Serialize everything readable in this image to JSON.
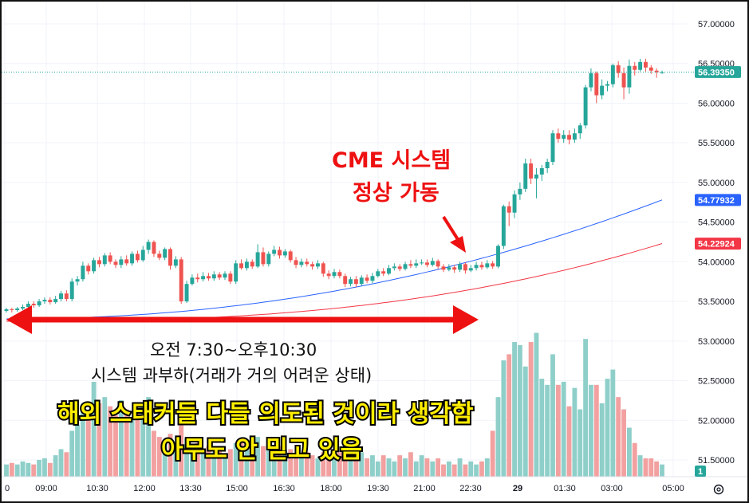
{
  "chart_data": {
    "type": "candlestick",
    "y_axis": {
      "ylim": [
        51.3,
        57.2
      ],
      "ticks": [
        "57.00000",
        "56.50000",
        "56.00000",
        "55.50000",
        "55.00000",
        "54.50000",
        "54.00000",
        "53.50000",
        "53.00000",
        "52.50000",
        "52.00000",
        "51.50000"
      ]
    },
    "x_axis": {
      "ticks": [
        "0",
        "09:00",
        "10:30",
        "12:00",
        "13:30",
        "15:00",
        "16:30",
        "18:00",
        "19:30",
        "21:00",
        "22:30",
        "29",
        "01:30",
        "03:00",
        "05:00"
      ]
    },
    "price_badges": {
      "last": {
        "value": "56.39350",
        "color": "#26a69a"
      },
      "ma_blue": {
        "value": "54.77932",
        "color": "#2962ff"
      },
      "ma_red": {
        "value": "54.22924",
        "color": "#f23645"
      }
    },
    "volume_badge": {
      "value": "1",
      "color": "#26a69a"
    },
    "colors": {
      "up": "#26a69a",
      "down": "#ef5350",
      "vol_up": "#8fcfc9",
      "vol_down": "#f2a0a0",
      "ma_blue": "#2962ff",
      "ma_red": "#f23645",
      "arrow": "#ee1111"
    },
    "candles": [
      [
        53.38,
        53.4,
        53.42,
        53.36
      ],
      [
        53.4,
        53.39,
        53.42,
        53.36
      ],
      [
        53.39,
        53.41,
        53.43,
        53.37
      ],
      [
        53.41,
        53.43,
        53.46,
        53.39
      ],
      [
        53.43,
        53.47,
        53.5,
        53.41
      ],
      [
        53.47,
        53.45,
        53.5,
        53.42
      ],
      [
        53.45,
        53.5,
        53.53,
        53.43
      ],
      [
        53.5,
        53.52,
        53.55,
        53.47
      ],
      [
        53.52,
        53.49,
        53.55,
        53.46
      ],
      [
        53.49,
        53.53,
        53.57,
        53.47
      ],
      [
        53.53,
        53.6,
        53.63,
        53.5
      ],
      [
        53.6,
        53.53,
        53.64,
        53.5
      ],
      [
        53.53,
        53.75,
        53.79,
        53.5
      ],
      [
        53.75,
        53.78,
        53.82,
        53.7
      ],
      [
        53.78,
        53.95,
        54.0,
        53.75
      ],
      [
        53.95,
        53.88,
        53.98,
        53.84
      ],
      [
        53.88,
        54.02,
        54.05,
        53.85
      ],
      [
        54.02,
        53.97,
        54.06,
        53.93
      ],
      [
        53.97,
        54.08,
        54.11,
        53.94
      ],
      [
        54.08,
        54.0,
        54.12,
        53.97
      ],
      [
        54.0,
        53.96,
        54.03,
        53.92
      ],
      [
        53.96,
        54.03,
        54.07,
        53.92
      ],
      [
        54.03,
        53.98,
        54.08,
        53.95
      ],
      [
        53.98,
        54.1,
        54.13,
        53.95
      ],
      [
        54.1,
        54.02,
        54.14,
        53.99
      ],
      [
        54.02,
        54.15,
        54.2,
        54.0
      ],
      [
        54.15,
        54.25,
        54.28,
        54.1
      ],
      [
        54.25,
        54.1,
        54.27,
        54.06
      ],
      [
        54.1,
        54.05,
        54.14,
        54.02
      ],
      [
        54.05,
        54.16,
        54.18,
        54.02
      ],
      [
        54.16,
        53.95,
        54.18,
        53.9
      ],
      [
        53.95,
        54.03,
        54.07,
        53.92
      ],
      [
        54.03,
        53.5,
        54.06,
        53.47
      ],
      [
        53.5,
        53.72,
        53.76,
        53.48
      ],
      [
        53.72,
        53.8,
        53.84,
        53.7
      ],
      [
        53.8,
        53.78,
        53.85,
        53.74
      ],
      [
        53.78,
        53.82,
        53.87,
        53.75
      ],
      [
        53.82,
        53.79,
        53.86,
        53.76
      ],
      [
        53.79,
        53.84,
        53.88,
        53.76
      ],
      [
        53.84,
        53.8,
        53.87,
        53.77
      ],
      [
        53.8,
        53.85,
        53.88,
        53.77
      ],
      [
        53.85,
        53.75,
        53.88,
        53.72
      ],
      [
        53.75,
        53.98,
        54.02,
        53.72
      ],
      [
        53.98,
        53.92,
        54.03,
        53.9
      ],
      [
        53.92,
        54.0,
        54.04,
        53.89
      ],
      [
        54.0,
        53.94,
        54.03,
        53.91
      ],
      [
        53.94,
        54.12,
        54.22,
        53.92
      ],
      [
        54.12,
        53.97,
        54.18,
        53.94
      ],
      [
        53.97,
        54.1,
        54.13,
        53.94
      ],
      [
        54.1,
        54.15,
        54.2,
        54.07
      ],
      [
        54.15,
        54.08,
        54.19,
        54.04
      ],
      [
        54.08,
        54.13,
        54.16,
        54.05
      ],
      [
        54.13,
        54.02,
        54.15,
        53.99
      ],
      [
        54.02,
        53.96,
        54.06,
        53.92
      ],
      [
        53.96,
        54.0,
        54.04,
        53.93
      ],
      [
        54.0,
        53.97,
        54.04,
        53.94
      ],
      [
        53.97,
        53.94,
        54.0,
        53.9
      ],
      [
        53.94,
        53.98,
        54.02,
        53.91
      ],
      [
        53.98,
        53.85,
        54.0,
        53.81
      ],
      [
        53.85,
        53.82,
        53.89,
        53.78
      ],
      [
        53.82,
        53.87,
        53.91,
        53.79
      ],
      [
        53.87,
        53.82,
        53.9,
        53.79
      ],
      [
        53.82,
        53.72,
        53.85,
        53.68
      ],
      [
        53.72,
        53.78,
        53.81,
        53.69
      ],
      [
        53.78,
        53.72,
        53.82,
        53.68
      ],
      [
        53.72,
        53.8,
        53.83,
        53.7
      ],
      [
        53.8,
        53.76,
        53.84,
        53.73
      ],
      [
        53.76,
        53.82,
        53.86,
        53.73
      ],
      [
        53.82,
        53.88,
        53.91,
        53.8
      ],
      [
        53.88,
        53.85,
        53.92,
        53.82
      ],
      [
        53.85,
        53.92,
        53.96,
        53.83
      ],
      [
        53.92,
        53.94,
        53.98,
        53.89
      ],
      [
        53.94,
        53.91,
        53.97,
        53.88
      ],
      [
        53.91,
        53.97,
        54.0,
        53.89
      ],
      [
        53.97,
        53.95,
        54.02,
        53.92
      ],
      [
        53.95,
        53.98,
        54.03,
        53.92
      ],
      [
        53.98,
        53.99,
        54.03,
        53.96
      ],
      [
        53.99,
        53.96,
        54.03,
        53.93
      ],
      [
        53.96,
        54.01,
        54.05,
        53.94
      ],
      [
        54.01,
        53.94,
        54.03,
        53.91
      ],
      [
        53.94,
        53.9,
        53.97,
        53.87
      ],
      [
        53.9,
        53.93,
        53.97,
        53.88
      ],
      [
        53.93,
        53.9,
        53.96,
        53.86
      ],
      [
        53.9,
        53.97,
        54.0,
        53.87
      ],
      [
        53.97,
        53.89,
        53.99,
        53.85
      ],
      [
        53.89,
        53.92,
        53.96,
        53.87
      ],
      [
        53.92,
        53.96,
        54.0,
        53.89
      ],
      [
        53.96,
        53.93,
        54.0,
        53.9
      ],
      [
        53.93,
        53.98,
        54.02,
        53.91
      ],
      [
        53.98,
        53.94,
        54.01,
        53.91
      ],
      [
        53.94,
        54.2,
        54.22,
        53.92
      ],
      [
        54.2,
        54.7,
        54.72,
        54.16
      ],
      [
        54.7,
        54.62,
        54.76,
        54.45
      ],
      [
        54.62,
        54.85,
        54.9,
        54.55
      ],
      [
        54.85,
        54.92,
        55.0,
        54.78
      ],
      [
        54.92,
        55.24,
        55.3,
        54.88
      ],
      [
        55.24,
        55.05,
        55.3,
        54.98
      ],
      [
        55.05,
        55.1,
        55.18,
        54.8
      ],
      [
        55.1,
        55.18,
        55.22,
        55.02
      ],
      [
        55.18,
        55.26,
        55.3,
        55.12
      ],
      [
        55.26,
        55.62,
        55.66,
        55.22
      ],
      [
        55.62,
        55.55,
        55.68,
        55.5
      ],
      [
        55.55,
        55.6,
        55.66,
        55.5
      ],
      [
        55.6,
        55.54,
        55.66,
        55.48
      ],
      [
        55.54,
        55.62,
        55.68,
        55.5
      ],
      [
        55.62,
        55.72,
        55.75,
        55.55
      ],
      [
        55.72,
        56.2,
        56.23,
        55.68
      ],
      [
        56.2,
        56.38,
        56.44,
        56.15
      ],
      [
        56.38,
        56.1,
        56.4,
        56.0
      ],
      [
        56.1,
        56.22,
        56.3,
        56.05
      ],
      [
        56.22,
        56.24,
        56.28,
        56.15
      ],
      [
        56.24,
        56.48,
        56.5,
        56.2
      ],
      [
        56.48,
        56.38,
        56.53,
        56.32
      ],
      [
        56.38,
        56.2,
        56.45,
        56.05
      ],
      [
        56.2,
        56.47,
        56.55,
        56.12
      ],
      [
        56.47,
        56.42,
        56.52,
        56.35
      ],
      [
        56.42,
        56.52,
        56.56,
        56.4
      ],
      [
        56.52,
        56.45,
        56.56,
        56.4
      ],
      [
        56.45,
        56.41,
        56.48,
        56.37
      ],
      [
        56.41,
        56.39,
        56.44,
        56.32
      ],
      [
        56.39,
        56.39,
        56.41,
        56.37
      ]
    ],
    "volume": [
      8,
      9,
      8,
      10,
      9,
      8,
      11,
      12,
      9,
      14,
      18,
      16,
      30,
      34,
      45,
      42,
      62,
      48,
      52,
      46,
      40,
      50,
      44,
      38,
      42,
      48,
      52,
      30,
      26,
      24,
      28,
      22,
      38,
      25,
      20,
      22,
      18,
      20,
      16,
      18,
      14,
      18,
      22,
      24,
      20,
      18,
      26,
      20,
      22,
      18,
      20,
      16,
      18,
      14,
      12,
      16,
      14,
      12,
      16,
      12,
      14,
      16,
      18,
      12,
      14,
      16,
      12,
      14,
      10,
      14,
      12,
      10,
      14,
      12,
      16,
      10,
      14,
      12,
      10,
      12,
      8,
      10,
      8,
      12,
      8,
      10,
      8,
      10,
      12,
      30,
      52,
      76,
      80,
      88,
      86,
      72,
      88,
      94,
      64,
      60,
      80,
      60,
      62,
      46,
      58,
      44,
      90,
      60,
      60,
      48,
      64,
      70,
      52,
      44,
      32,
      22,
      14,
      12,
      12,
      10,
      8
    ]
  },
  "overlay": {
    "ma_blue_start": 53.28,
    "ma_blue_end": 54.78,
    "ma_red_start": 53.25,
    "ma_red_end": 54.23
  },
  "annotations": {
    "cme_line1": "CME 시스템",
    "cme_line2": "정상 가동",
    "period": "오전 7:30~오후10:30",
    "overload": "시스템 과부하(거래가 거의 어려운 상태)",
    "yellow_line1": "해외 스태커들 다들 의도된 것이라 생각함",
    "yellow_line2": "아무도 안 믿고 있음"
  }
}
